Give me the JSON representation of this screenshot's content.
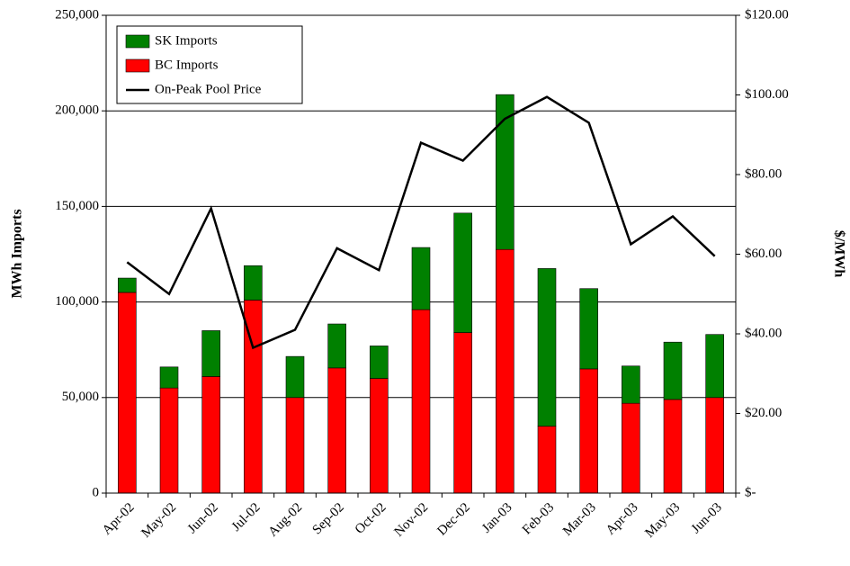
{
  "chart_data": {
    "type": "stacked-bar-line",
    "y_label": "MWh Imports",
    "y2_label": "$/MWh",
    "categories": [
      "Apr-02",
      "May-02",
      "Jun-02",
      "Jul-02",
      "Aug-02",
      "Sep-02",
      "Oct-02",
      "Nov-02",
      "Dec-02",
      "Jan-03",
      "Feb-03",
      "Mar-03",
      "Apr-03",
      "May-03",
      "Jun-03"
    ],
    "series": [
      {
        "name": "SK Imports",
        "color": "#008000",
        "kind": "bar",
        "values": [
          7500,
          11000,
          24000,
          18000,
          21500,
          23000,
          17000,
          32500,
          62500,
          81000,
          82500,
          42000,
          19500,
          30000,
          33000
        ]
      },
      {
        "name": "BC Imports",
        "color": "#ff0000",
        "kind": "bar",
        "values": [
          105000,
          55000,
          61000,
          101000,
          50000,
          65500,
          60000,
          96000,
          84000,
          127500,
          35000,
          65000,
          47000,
          49000,
          50000
        ]
      },
      {
        "name": "On-Peak Pool Price",
        "color": "#000000",
        "kind": "line",
        "axis": "y2",
        "values": [
          58,
          50,
          71.5,
          36.5,
          41,
          61.5,
          56,
          88,
          83.5,
          94,
          99.5,
          93,
          62.5,
          69.5,
          59.5
        ]
      }
    ],
    "ylim": [
      0,
      250000
    ],
    "yticks": [
      0,
      {
        "value": 50000,
        "label": "50,000"
      },
      {
        "value": 100000,
        "label": "100,000"
      },
      {
        "value": 150000,
        "label": "150,000"
      },
      {
        "value": 200000,
        "label": "200,000"
      },
      {
        "value": 250000,
        "label": "250,000"
      }
    ],
    "y2lim": [
      0,
      120
    ],
    "y2ticks": [
      {
        "value": 0,
        "label": "$-"
      },
      {
        "value": 20,
        "label": "$20.00"
      },
      {
        "value": 40,
        "label": "$40.00"
      },
      {
        "value": 60,
        "label": "$60.00"
      },
      {
        "value": 80,
        "label": "$80.00"
      },
      {
        "value": 100,
        "label": "$100.00"
      },
      {
        "value": 120,
        "label": "$120.00"
      }
    ],
    "grid": true,
    "legend": "top-left"
  }
}
